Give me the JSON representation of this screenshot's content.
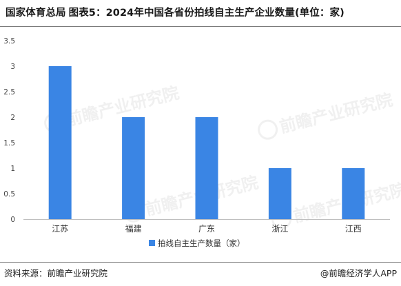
{
  "header": {
    "source_org": "国家体育总局",
    "title": "图表5：2024年中国各省份拍线自主生产企业数量(单位：家)"
  },
  "footer": {
    "source": "资料来源：前瞻产业研究院",
    "credit": "@前瞻经济学人APP"
  },
  "watermark": {
    "text": "前瞻产业研究院"
  },
  "colors": {
    "bar": "#3a85e4",
    "axis": "#bfbfbf"
  },
  "chart_data": {
    "type": "bar",
    "title": "图表5：2024年中国各省份拍线自主生产企业数量(单位：家)",
    "categories": [
      "江苏",
      "福建",
      "广东",
      "浙江",
      "江西"
    ],
    "series": [
      {
        "name": "拍线自主生产数量（家）",
        "values": [
          3,
          2,
          2,
          1,
          1
        ]
      }
    ],
    "y_ticks": [
      "0",
      "0.5",
      "1",
      "1.5",
      "2",
      "2.5",
      "3",
      "3.5"
    ],
    "ylim": [
      0,
      3.5
    ],
    "grid": false,
    "legend": "bottom-center"
  }
}
